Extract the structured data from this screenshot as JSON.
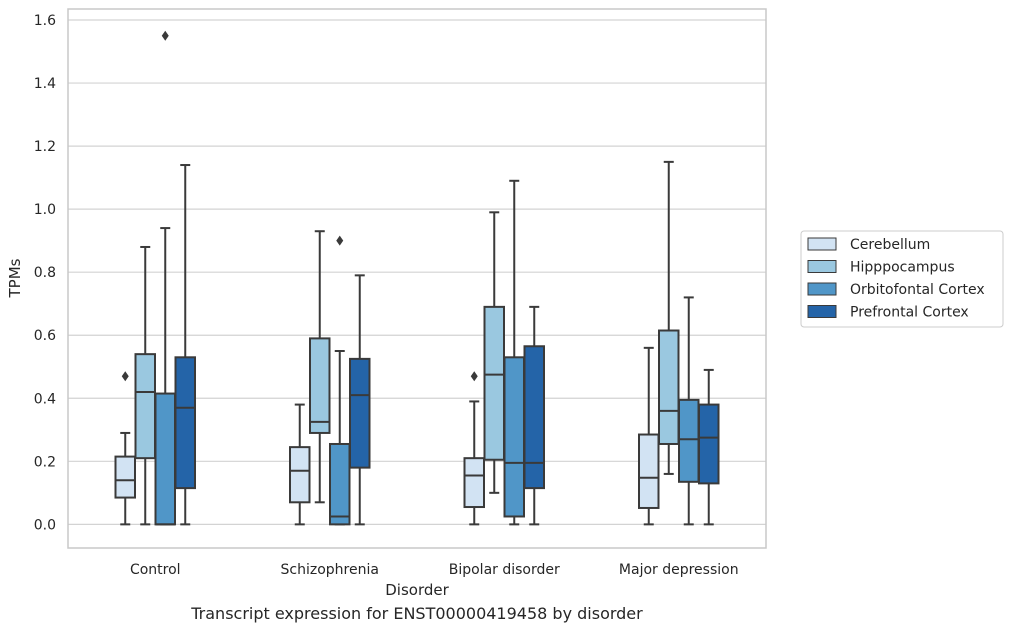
{
  "caption": "Transcript expression for ENST00000419458 by disorder",
  "chart_data": {
    "type": "box",
    "xlabel": "Disorder",
    "ylabel": "TPMs",
    "ylim": [
      -0.075,
      1.635
    ],
    "yticks": [
      0.0,
      0.2,
      0.4,
      0.6,
      0.8,
      1.0,
      1.2,
      1.4,
      1.6
    ],
    "ytick_labels": [
      "0.0",
      "0.2",
      "0.4",
      "0.6",
      "0.8",
      "1.0",
      "1.2",
      "1.4",
      "1.6"
    ],
    "grid": true,
    "legend_placement": "right",
    "categories": [
      "Control",
      "Schizophrenia",
      "Bipolar disorder",
      "Major depression"
    ],
    "series": [
      {
        "name": "Cerebellum",
        "color": "#d2e3f3",
        "boxes": [
          {
            "whislo": 0.0,
            "q1": 0.085,
            "med": 0.14,
            "q3": 0.215,
            "whishi": 0.29,
            "fliers": [
              0.47
            ]
          },
          {
            "whislo": 0.0,
            "q1": 0.07,
            "med": 0.17,
            "q3": 0.245,
            "whishi": 0.38,
            "fliers": []
          },
          {
            "whislo": 0.0,
            "q1": 0.055,
            "med": 0.155,
            "q3": 0.21,
            "whishi": 0.39,
            "fliers": [
              0.47
            ]
          },
          {
            "whislo": 0.0,
            "q1": 0.052,
            "med": 0.148,
            "q3": 0.285,
            "whishi": 0.56,
            "fliers": []
          }
        ]
      },
      {
        "name": "Hipppocampus",
        "color": "#9ac8e0",
        "boxes": [
          {
            "whislo": 0.0,
            "q1": 0.21,
            "med": 0.42,
            "q3": 0.54,
            "whishi": 0.88,
            "fliers": []
          },
          {
            "whislo": 0.07,
            "q1": 0.29,
            "med": 0.325,
            "q3": 0.59,
            "whishi": 0.93,
            "fliers": []
          },
          {
            "whislo": 0.1,
            "q1": 0.205,
            "med": 0.475,
            "q3": 0.69,
            "whishi": 0.99,
            "fliers": []
          },
          {
            "whislo": 0.16,
            "q1": 0.255,
            "med": 0.36,
            "q3": 0.615,
            "whishi": 1.15,
            "fliers": []
          }
        ]
      },
      {
        "name": "Orbitofontal Cortex",
        "color": "#5096c8",
        "boxes": [
          {
            "whislo": 0.0,
            "q1": 0.0,
            "med": 0.0,
            "q3": 0.415,
            "whishi": 0.94,
            "fliers": [
              1.55
            ]
          },
          {
            "whislo": 0.0,
            "q1": 0.0,
            "med": 0.025,
            "q3": 0.255,
            "whishi": 0.55,
            "fliers": [
              0.9
            ]
          },
          {
            "whislo": 0.0,
            "q1": 0.025,
            "med": 0.195,
            "q3": 0.53,
            "whishi": 1.09,
            "fliers": []
          },
          {
            "whislo": 0.0,
            "q1": 0.135,
            "med": 0.27,
            "q3": 0.395,
            "whishi": 0.72,
            "fliers": []
          }
        ]
      },
      {
        "name": "Prefrontal Cortex",
        "color": "#2464a8",
        "boxes": [
          {
            "whislo": 0.0,
            "q1": 0.115,
            "med": 0.37,
            "q3": 0.53,
            "whishi": 1.14,
            "fliers": []
          },
          {
            "whislo": 0.0,
            "q1": 0.18,
            "med": 0.41,
            "q3": 0.525,
            "whishi": 0.79,
            "fliers": []
          },
          {
            "whislo": 0.0,
            "q1": 0.115,
            "med": 0.195,
            "q3": 0.565,
            "whishi": 0.69,
            "fliers": []
          },
          {
            "whislo": 0.0,
            "q1": 0.13,
            "med": 0.275,
            "q3": 0.38,
            "whishi": 0.49,
            "fliers": []
          }
        ]
      }
    ],
    "colors": {
      "line": "#3a3a3a",
      "grid": "#d3d3d3",
      "frame": "#c8c8c8"
    }
  }
}
